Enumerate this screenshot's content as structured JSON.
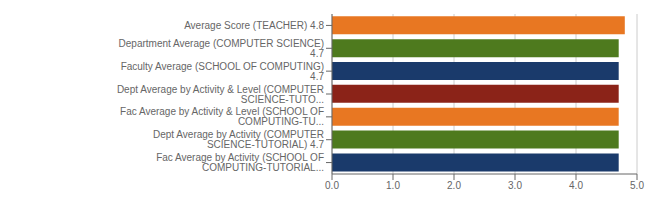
{
  "chart_data": {
    "type": "bar",
    "orientation": "horizontal",
    "categories": [
      "Fac Average by Activity (SCHOOL OF COMPUTING-TUTORIAL...",
      "Dept Average by Activity (COMPUTER SCIENCE-TUTORIAL)  4.7",
      "Fac Average by Activity & Level (SCHOOL OF COMPUTING-TU...",
      "Dept Average by Activity & Level (COMPUTER SCIENCE-TUTO...",
      "Faculty Average (SCHOOL OF COMPUTING)  4.7",
      "Department Average (COMPUTER SCIENCE)  4.7",
      "Average Score (TEACHER)  4.8"
    ],
    "values": [
      4.7,
      4.7,
      4.7,
      4.7,
      4.7,
      4.7,
      4.8
    ],
    "colors": [
      "#1a3a6b",
      "#4e7a1e",
      "#e87722",
      "#8b2318",
      "#1a3a6b",
      "#4e7a1e",
      "#e87722"
    ],
    "xlim": [
      0,
      5.0
    ],
    "xticks": [
      {
        "value": 0,
        "label": "0.0"
      },
      {
        "value": 1,
        "label": "1.0"
      },
      {
        "value": 2,
        "label": "2.0"
      },
      {
        "value": 3,
        "label": "3.0"
      },
      {
        "value": 4,
        "label": "4.0"
      },
      {
        "value": 5,
        "label": "5.0"
      }
    ],
    "grid": true
  }
}
